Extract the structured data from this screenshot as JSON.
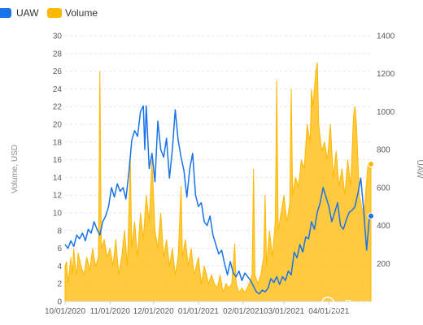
{
  "chart_data": {
    "type": "area",
    "title": "",
    "legend": {
      "position": "top-left",
      "items": [
        {
          "label": "UAW",
          "color": "#1a73e8"
        },
        {
          "label": "Volume",
          "color": "#ffb800"
        }
      ]
    },
    "ylabel_left": "Volume, USD",
    "ylabel_right": "UAW",
    "ylim_left": [
      0,
      30
    ],
    "ylim_right": [
      0,
      1400
    ],
    "y_ticks_left": [
      "0",
      "2",
      "4",
      "6",
      "8",
      "10",
      "12",
      "14",
      "16",
      "18",
      "20",
      "22",
      "24",
      "26",
      "28",
      "30"
    ],
    "y_ticks_right": [
      "200",
      "400",
      "600",
      "800",
      "1000",
      "1200",
      "1400"
    ],
    "x_range": [
      "2020-10-01",
      "2021-04-30"
    ],
    "x_ticks": [
      "10/01/2020",
      "11/01/2020",
      "12/01/2020",
      "01/01/2021",
      "02/01/2021",
      "03/01/2021",
      "04/01/2021"
    ],
    "grid": true,
    "series": [
      {
        "name": "Volume",
        "axis": "left",
        "kind": "area",
        "color": "#ffb800",
        "points": [
          [
            "2020-10-01",
            4
          ],
          [
            "2020-10-02",
            4.5
          ],
          [
            "2020-10-03",
            2
          ],
          [
            "2020-10-04",
            3.5
          ],
          [
            "2020-10-05",
            5
          ],
          [
            "2020-10-06",
            3
          ],
          [
            "2020-10-07",
            6
          ],
          [
            "2020-10-08",
            4
          ],
          [
            "2020-10-09",
            3
          ],
          [
            "2020-10-10",
            5.5
          ],
          [
            "2020-10-12",
            4
          ],
          [
            "2020-10-14",
            3
          ],
          [
            "2020-10-16",
            5
          ],
          [
            "2020-10-18",
            3.5
          ],
          [
            "2020-10-20",
            6
          ],
          [
            "2020-10-22",
            4
          ],
          [
            "2020-10-24",
            5
          ],
          [
            "2020-10-25",
            26
          ],
          [
            "2020-10-26",
            6
          ],
          [
            "2020-10-28",
            7
          ],
          [
            "2020-10-30",
            5
          ],
          [
            "2020-11-01",
            6
          ],
          [
            "2020-11-03",
            4
          ],
          [
            "2020-11-05",
            7
          ],
          [
            "2020-11-07",
            3
          ],
          [
            "2020-11-09",
            5
          ],
          [
            "2020-11-11",
            8
          ],
          [
            "2020-11-13",
            4
          ],
          [
            "2020-11-15",
            16
          ],
          [
            "2020-11-16",
            6
          ],
          [
            "2020-11-18",
            9
          ],
          [
            "2020-11-20",
            5
          ],
          [
            "2020-11-22",
            10
          ],
          [
            "2020-11-24",
            7
          ],
          [
            "2020-11-26",
            12
          ],
          [
            "2020-11-28",
            9
          ],
          [
            "2020-11-30",
            16
          ],
          [
            "2020-12-02",
            8
          ],
          [
            "2020-12-04",
            6
          ],
          [
            "2020-12-06",
            10
          ],
          [
            "2020-12-08",
            5
          ],
          [
            "2020-12-10",
            7
          ],
          [
            "2020-12-12",
            4
          ],
          [
            "2020-12-14",
            6
          ],
          [
            "2020-12-16",
            3
          ],
          [
            "2020-12-18",
            5
          ],
          [
            "2020-12-20",
            13
          ],
          [
            "2020-12-21",
            5
          ],
          [
            "2020-12-23",
            7
          ],
          [
            "2020-12-25",
            4
          ],
          [
            "2020-12-27",
            6
          ],
          [
            "2020-12-29",
            3
          ],
          [
            "2021-01-01",
            5
          ],
          [
            "2021-01-03",
            2
          ],
          [
            "2021-01-05",
            4
          ],
          [
            "2021-01-08",
            2
          ],
          [
            "2021-01-10",
            3
          ],
          [
            "2021-01-12",
            2
          ],
          [
            "2021-01-14",
            1.5
          ],
          [
            "2021-01-16",
            3
          ],
          [
            "2021-01-18",
            1
          ],
          [
            "2021-01-20",
            2
          ],
          [
            "2021-01-22",
            1.5
          ],
          [
            "2021-01-24",
            2
          ],
          [
            "2021-01-26",
            6.5
          ],
          [
            "2021-01-27",
            2
          ],
          [
            "2021-01-29",
            1
          ],
          [
            "2021-01-31",
            1.5
          ],
          [
            "2021-02-02",
            1
          ],
          [
            "2021-02-05",
            2
          ],
          [
            "2021-02-07",
            3
          ],
          [
            "2021-02-08",
            15
          ],
          [
            "2021-02-09",
            3
          ],
          [
            "2021-02-11",
            2
          ],
          [
            "2021-02-13",
            3
          ],
          [
            "2021-02-15",
            5
          ],
          [
            "2021-02-16",
            12
          ],
          [
            "2021-02-17",
            4
          ],
          [
            "2021-02-19",
            8
          ],
          [
            "2021-02-21",
            5
          ],
          [
            "2021-02-23",
            9
          ],
          [
            "2021-02-24",
            25
          ],
          [
            "2021-02-25",
            8
          ],
          [
            "2021-02-27",
            10
          ],
          [
            "2021-03-01",
            12
          ],
          [
            "2021-03-03",
            9
          ],
          [
            "2021-03-05",
            11
          ],
          [
            "2021-03-06",
            24
          ],
          [
            "2021-03-07",
            12
          ],
          [
            "2021-03-09",
            14
          ],
          [
            "2021-03-11",
            13
          ],
          [
            "2021-03-13",
            16
          ],
          [
            "2021-03-15",
            15
          ],
          [
            "2021-03-17",
            20
          ],
          [
            "2021-03-19",
            18
          ],
          [
            "2021-03-20",
            24
          ],
          [
            "2021-03-21",
            22
          ],
          [
            "2021-03-23",
            26
          ],
          [
            "2021-03-24",
            27
          ],
          [
            "2021-03-25",
            20
          ],
          [
            "2021-03-27",
            17
          ],
          [
            "2021-03-29",
            18
          ],
          [
            "2021-03-31",
            16
          ],
          [
            "2021-04-02",
            20
          ],
          [
            "2021-04-04",
            14
          ],
          [
            "2021-04-06",
            17
          ],
          [
            "2021-04-08",
            13
          ],
          [
            "2021-04-10",
            15
          ],
          [
            "2021-04-12",
            12
          ],
          [
            "2021-04-14",
            16
          ],
          [
            "2021-04-16",
            13
          ],
          [
            "2021-04-18",
            21
          ],
          [
            "2021-04-19",
            22
          ],
          [
            "2021-04-20",
            20
          ],
          [
            "2021-04-22",
            12
          ],
          [
            "2021-04-25",
            9.5
          ],
          [
            "2021-04-28",
            15.5
          ],
          [
            "2021-04-30",
            15.5
          ]
        ],
        "end_marker": 15.5
      },
      {
        "name": "UAW",
        "axis": "right",
        "kind": "line",
        "color": "#1a73e8",
        "points": [
          [
            "2020-10-01",
            300
          ],
          [
            "2020-10-03",
            280
          ],
          [
            "2020-10-05",
            320
          ],
          [
            "2020-10-07",
            290
          ],
          [
            "2020-10-09",
            350
          ],
          [
            "2020-10-11",
            330
          ],
          [
            "2020-10-13",
            360
          ],
          [
            "2020-10-15",
            320
          ],
          [
            "2020-10-17",
            380
          ],
          [
            "2020-10-19",
            360
          ],
          [
            "2020-10-21",
            420
          ],
          [
            "2020-10-23",
            380
          ],
          [
            "2020-10-25",
            350
          ],
          [
            "2020-10-27",
            420
          ],
          [
            "2020-10-29",
            450
          ],
          [
            "2020-10-31",
            500
          ],
          [
            "2020-11-02",
            600
          ],
          [
            "2020-11-04",
            550
          ],
          [
            "2020-11-06",
            620
          ],
          [
            "2020-11-08",
            580
          ],
          [
            "2020-11-10",
            600
          ],
          [
            "2020-11-12",
            540
          ],
          [
            "2020-11-14",
            680
          ],
          [
            "2020-11-16",
            850
          ],
          [
            "2020-11-18",
            900
          ],
          [
            "2020-11-20",
            870
          ],
          [
            "2020-11-22",
            1000
          ],
          [
            "2020-11-24",
            1030
          ],
          [
            "2020-11-25",
            800
          ],
          [
            "2020-11-26",
            1030
          ],
          [
            "2020-11-28",
            700
          ],
          [
            "2020-11-30",
            780
          ],
          [
            "2020-12-02",
            630
          ],
          [
            "2020-12-04",
            950
          ],
          [
            "2020-12-06",
            800
          ],
          [
            "2020-12-08",
            760
          ],
          [
            "2020-12-10",
            860
          ],
          [
            "2020-12-12",
            650
          ],
          [
            "2020-12-14",
            800
          ],
          [
            "2020-12-16",
            1010
          ],
          [
            "2020-12-18",
            850
          ],
          [
            "2020-12-20",
            760
          ],
          [
            "2020-12-22",
            690
          ],
          [
            "2020-12-24",
            550
          ],
          [
            "2020-12-26",
            700
          ],
          [
            "2020-12-28",
            780
          ],
          [
            "2020-12-30",
            560
          ],
          [
            "2021-01-01",
            500
          ],
          [
            "2021-01-03",
            520
          ],
          [
            "2021-01-05",
            420
          ],
          [
            "2021-01-07",
            400
          ],
          [
            "2021-01-09",
            450
          ],
          [
            "2021-01-11",
            350
          ],
          [
            "2021-01-13",
            300
          ],
          [
            "2021-01-15",
            250
          ],
          [
            "2021-01-17",
            270
          ],
          [
            "2021-01-19",
            200
          ],
          [
            "2021-01-21",
            140
          ],
          [
            "2021-01-23",
            210
          ],
          [
            "2021-01-25",
            150
          ],
          [
            "2021-01-27",
            130
          ],
          [
            "2021-01-29",
            160
          ],
          [
            "2021-01-31",
            110
          ],
          [
            "2021-02-02",
            150
          ],
          [
            "2021-02-04",
            130
          ],
          [
            "2021-02-06",
            110
          ],
          [
            "2021-02-08",
            80
          ],
          [
            "2021-02-10",
            50
          ],
          [
            "2021-02-12",
            40
          ],
          [
            "2021-02-14",
            60
          ],
          [
            "2021-02-16",
            50
          ],
          [
            "2021-02-18",
            70
          ],
          [
            "2021-02-20",
            120
          ],
          [
            "2021-02-22",
            100
          ],
          [
            "2021-02-24",
            130
          ],
          [
            "2021-02-26",
            90
          ],
          [
            "2021-02-28",
            130
          ],
          [
            "2021-03-02",
            110
          ],
          [
            "2021-03-04",
            160
          ],
          [
            "2021-03-06",
            140
          ],
          [
            "2021-03-08",
            260
          ],
          [
            "2021-03-10",
            230
          ],
          [
            "2021-03-12",
            300
          ],
          [
            "2021-03-14",
            260
          ],
          [
            "2021-03-16",
            340
          ],
          [
            "2021-03-18",
            330
          ],
          [
            "2021-03-20",
            420
          ],
          [
            "2021-03-22",
            380
          ],
          [
            "2021-03-24",
            470
          ],
          [
            "2021-03-26",
            520
          ],
          [
            "2021-03-28",
            600
          ],
          [
            "2021-03-30",
            550
          ],
          [
            "2021-04-01",
            500
          ],
          [
            "2021-04-03",
            420
          ],
          [
            "2021-04-05",
            470
          ],
          [
            "2021-04-07",
            520
          ],
          [
            "2021-04-09",
            400
          ],
          [
            "2021-04-11",
            380
          ],
          [
            "2021-04-13",
            430
          ],
          [
            "2021-04-15",
            470
          ],
          [
            "2021-04-17",
            480
          ],
          [
            "2021-04-19",
            500
          ],
          [
            "2021-04-21",
            570
          ],
          [
            "2021-04-23",
            650
          ],
          [
            "2021-04-25",
            480
          ],
          [
            "2021-04-27",
            270
          ],
          [
            "2021-04-29",
            450
          ],
          [
            "2021-04-30",
            450
          ]
        ],
        "end_marker": 450
      }
    ]
  },
  "watermark": {
    "text": "DappRadar榜单",
    "icon": "wechat-bubbles-icon"
  }
}
